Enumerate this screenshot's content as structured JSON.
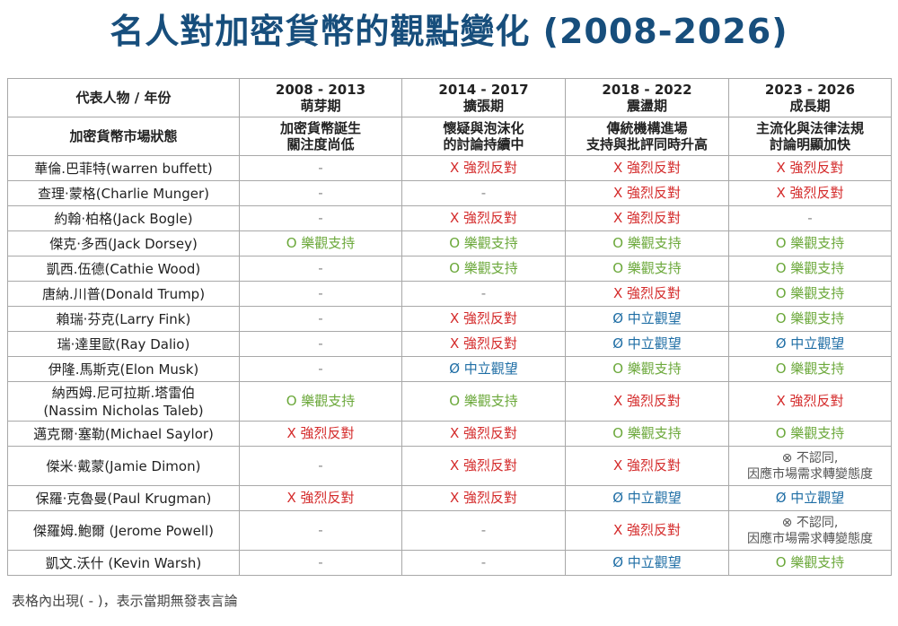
{
  "title": "名人對加密貨幣的觀點變化 (2008-2026)",
  "header": {
    "person_label": "代表人物 / 年份",
    "market_label": "加密貨幣市場狀態",
    "periods": [
      {
        "years": "2008 - 2013",
        "stage": "萌芽期",
        "status": [
          "加密貨幣誕生",
          "關注度尚低"
        ]
      },
      {
        "years": "2014 - 2017",
        "stage": "擴張期",
        "status": [
          "懷疑與泡沫化",
          "的討論持續中"
        ]
      },
      {
        "years": "2018 - 2022",
        "stage": "震盪期",
        "status": [
          "傳統機構進場",
          "支持與批評同時升高"
        ]
      },
      {
        "years": "2023 - 2026",
        "stage": "成長期",
        "status": [
          "主流化與法律法規",
          "討論明顯加快"
        ]
      }
    ]
  },
  "legend": {
    "positive": "O 樂觀支持",
    "negative": "X 強烈反對",
    "neutral": "Ø 中立觀望",
    "none": "-",
    "disagree": [
      "⊗ 不認同,",
      "因應市場需求轉變態度"
    ]
  },
  "rows": [
    {
      "name": [
        "華倫.巴菲特(warren buffett)"
      ],
      "views": [
        "none",
        "negative",
        "negative",
        "negative"
      ]
    },
    {
      "name": [
        "查理·蒙格(Charlie Munger)"
      ],
      "views": [
        "none",
        "none",
        "negative",
        "negative"
      ]
    },
    {
      "name": [
        "約翰·柏格(Jack Bogle)"
      ],
      "views": [
        "none",
        "negative",
        "negative",
        "none"
      ]
    },
    {
      "name": [
        "傑克·多西(Jack Dorsey)"
      ],
      "views": [
        "positive",
        "positive",
        "positive",
        "positive"
      ]
    },
    {
      "name": [
        "凱西.伍德(Cathie Wood)"
      ],
      "views": [
        "none",
        "positive",
        "positive",
        "positive"
      ]
    },
    {
      "name": [
        "唐納.川普(Donald Trump)"
      ],
      "views": [
        "none",
        "none",
        "negative",
        "positive"
      ]
    },
    {
      "name": [
        "賴瑞·芬克(Larry Fink)"
      ],
      "views": [
        "none",
        "negative",
        "neutral",
        "positive"
      ]
    },
    {
      "name": [
        "瑞·達里歐(Ray Dalio)"
      ],
      "views": [
        "none",
        "negative",
        "neutral",
        "neutral"
      ]
    },
    {
      "name": [
        "伊隆.馬斯克(Elon Musk)"
      ],
      "views": [
        "none",
        "neutral",
        "positive",
        "positive"
      ]
    },
    {
      "name": [
        "納西姆.尼可拉斯.塔雷伯",
        "(Nassim Nicholas Taleb)"
      ],
      "views": [
        "positive",
        "positive",
        "negative",
        "negative"
      ]
    },
    {
      "name": [
        "邁克爾·塞勒(Michael Saylor)"
      ],
      "views": [
        "negative",
        "negative",
        "positive",
        "positive"
      ]
    },
    {
      "name": [
        "傑米·戴蒙(Jamie Dimon)"
      ],
      "views": [
        "none",
        "negative",
        "negative",
        "disagree"
      ]
    },
    {
      "name": [
        "保羅·克魯曼(Paul Krugman)"
      ],
      "views": [
        "negative",
        "negative",
        "neutral",
        "neutral"
      ]
    },
    {
      "name": [
        "傑羅姆.鮑爾 (Jerome Powell)"
      ],
      "views": [
        "none",
        "none",
        "negative",
        "disagree"
      ]
    },
    {
      "name": [
        "凱文.沃什 (Kevin Warsh)"
      ],
      "views": [
        "none",
        "none",
        "neutral",
        "positive"
      ]
    }
  ],
  "footnote": "表格內出現( - )，表示當期無發表言論",
  "colors": {
    "title": "#174e7c",
    "positive": "#6ba83a",
    "negative": "#d42b2b",
    "neutral": "#1f6ea5",
    "border": "#a8a8a8"
  }
}
